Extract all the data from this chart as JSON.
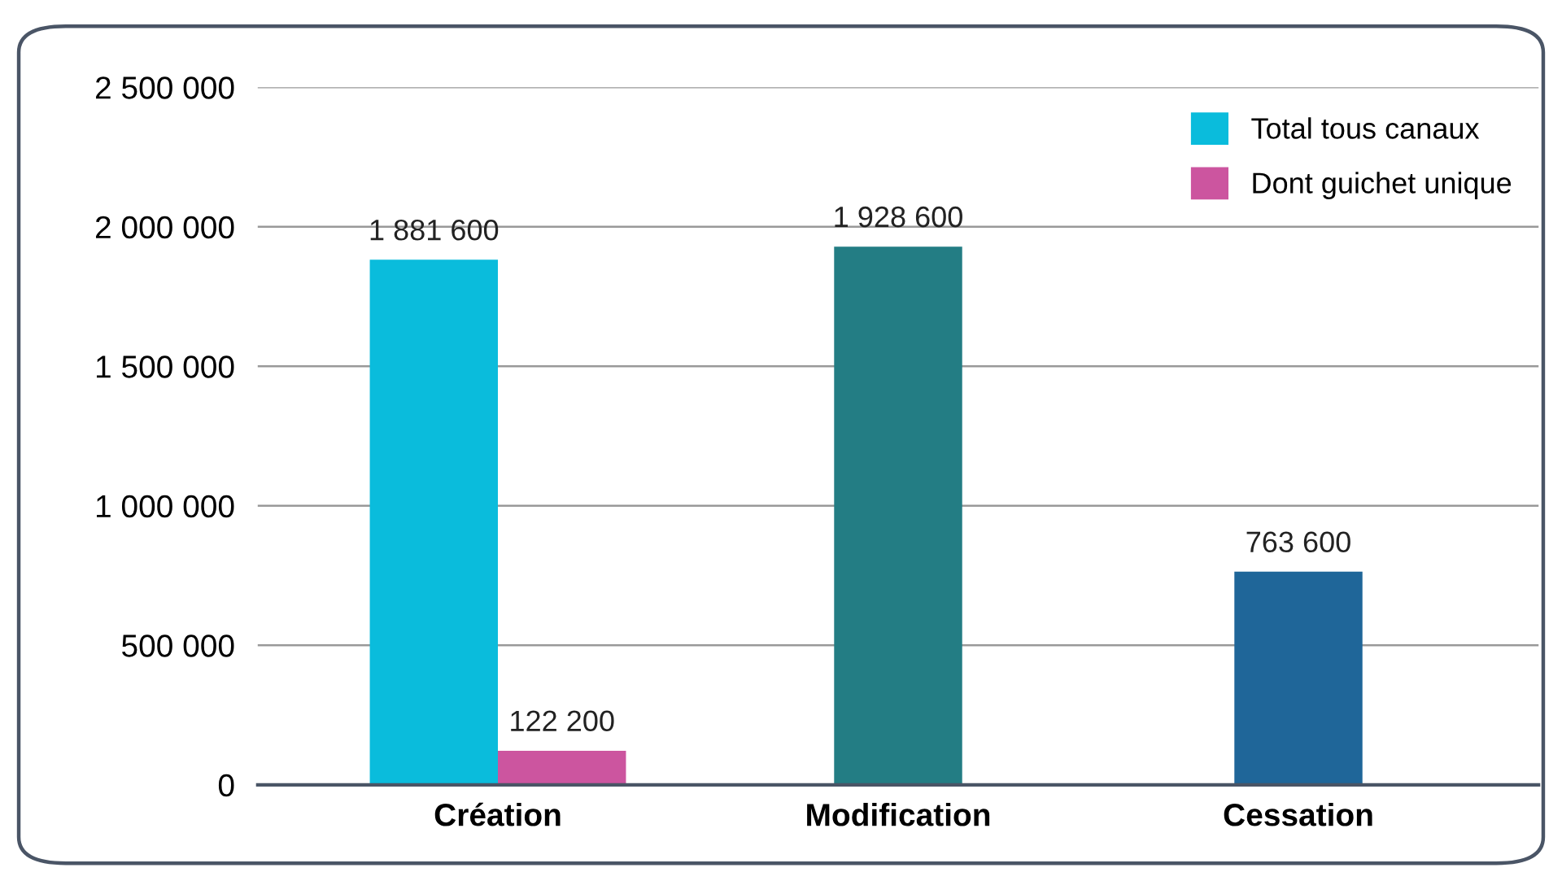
{
  "chart_data": {
    "type": "bar",
    "categories": [
      "Création",
      "Modification",
      "Cessation"
    ],
    "series": [
      {
        "name": "Total tous canaux",
        "color": "#0abcdc",
        "colors": [
          "#0abcdc",
          "#237d84",
          "#1f6699"
        ],
        "values": [
          1881600,
          1928600,
          763600
        ],
        "value_labels": [
          "1 881 600",
          "1 928 600",
          "763 600"
        ]
      },
      {
        "name": "Dont guichet unique",
        "color": "#cc559f",
        "values": [
          122200,
          null,
          null
        ],
        "value_labels": [
          "122 200",
          null,
          null
        ]
      }
    ],
    "ylim": [
      0,
      2500000
    ],
    "yticks": [
      {
        "value": 0,
        "label": "0"
      },
      {
        "value": 500000,
        "label": "500 000"
      },
      {
        "value": 1000000,
        "label": "1 000 000"
      },
      {
        "value": 1500000,
        "label": "1 500 000"
      },
      {
        "value": 2000000,
        "label": "2 000 000"
      },
      {
        "value": 2500000,
        "label": "2 500 000"
      }
    ],
    "grid": "y",
    "legend": "top right"
  }
}
